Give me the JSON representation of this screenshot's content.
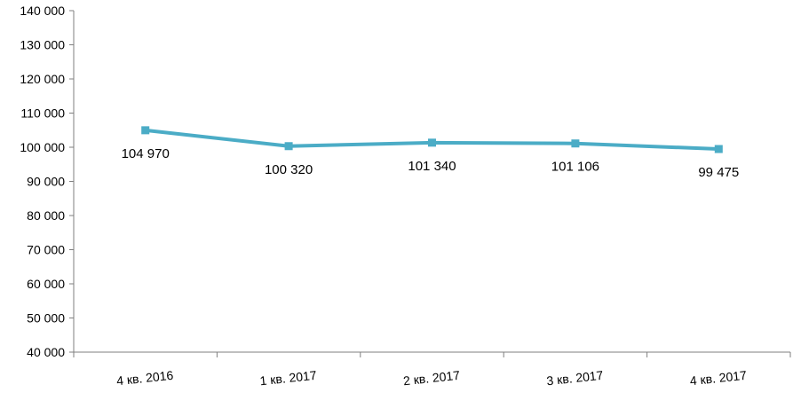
{
  "chart_data": {
    "type": "line",
    "title": "",
    "xlabel": "",
    "ylabel": "",
    "categories": [
      "4 кв. 2016",
      "1 кв. 2017",
      "2 кв. 2017",
      "3 кв. 2017",
      "4 кв. 2017"
    ],
    "series": [
      {
        "values": [
          104970,
          100320,
          101340,
          101106,
          99475
        ],
        "labels": [
          "104 970",
          "100 320",
          "101 340",
          "101 106",
          "99 475"
        ],
        "color": "#4bacc6",
        "marker": "square"
      }
    ],
    "ylim": [
      40000,
      140000
    ],
    "yticks": [
      40000,
      50000,
      60000,
      70000,
      80000,
      90000,
      100000,
      110000,
      120000,
      130000,
      140000
    ],
    "ytick_labels": [
      "40 000",
      "50 000",
      "60 000",
      "70 000",
      "80 000",
      "90 000",
      "100 000",
      "110 000",
      "120 000",
      "130 000",
      "140 000"
    ],
    "grid": false,
    "legend": "none",
    "axis_color": "#7f7f7f"
  }
}
